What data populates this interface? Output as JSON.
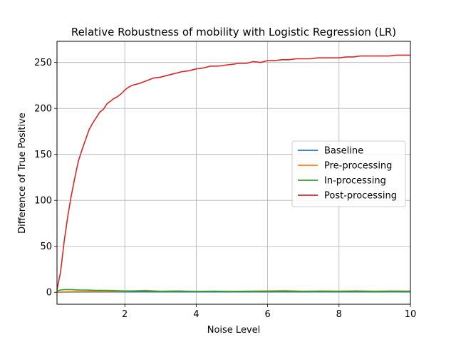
{
  "chart_data": {
    "type": "line",
    "title": "Relative Robustness of mobility with Logistic Regression (LR)",
    "xlabel": "Noise Level",
    "ylabel": "Difference of True Positive",
    "xlim": [
      0.1,
      10
    ],
    "ylim": [
      -13,
      273
    ],
    "xticks": [
      2,
      4,
      6,
      8,
      10
    ],
    "yticks": [
      0,
      50,
      100,
      150,
      200,
      250
    ],
    "grid": true,
    "legend_position": "center-right",
    "series": [
      {
        "name": "Baseline",
        "color": "#1f77b4",
        "x": [
          0.1,
          0.3,
          0.5,
          1,
          1.5,
          2,
          3,
          4,
          5,
          6,
          7,
          8,
          9,
          10
        ],
        "y": [
          0,
          0.2,
          0.4,
          0.5,
          0.5,
          0.5,
          0.5,
          0.5,
          0.5,
          0.5,
          0.5,
          0.5,
          0.5,
          0.5
        ]
      },
      {
        "name": "Pre-processing",
        "color": "#ff7f0e",
        "x": [
          0.1,
          0.3,
          0.5,
          1,
          1.5,
          2,
          2.6,
          3,
          3.5,
          4,
          4.5,
          5,
          5.5,
          6,
          6.5,
          7,
          7.5,
          8,
          8.5,
          9,
          9.5,
          10
        ],
        "y": [
          0,
          0.5,
          0.8,
          1,
          1,
          1.2,
          2,
          1,
          1.5,
          1,
          1.2,
          1,
          1.3,
          1.5,
          1.8,
          1.2,
          1.5,
          1.3,
          1.6,
          1.2,
          1.5,
          1.3
        ]
      },
      {
        "name": "In-processing",
        "color": "#2ca02c",
        "x": [
          0.1,
          0.2,
          0.3,
          0.5,
          0.7,
          0.9,
          1.2,
          1.5,
          2,
          2.5,
          3,
          3.5,
          4,
          4.5,
          5,
          5.5,
          6,
          6.5,
          7,
          7.5,
          8,
          8.5,
          9,
          9.5,
          10
        ],
        "y": [
          1.5,
          2.5,
          3,
          3,
          2.5,
          2.5,
          2,
          2,
          1.5,
          1.5,
          1.2,
          1.3,
          1.0,
          1.2,
          1.0,
          1.1,
          1.0,
          1.2,
          1.0,
          1.1,
          1.0,
          1.2,
          1.0,
          1.1,
          1.0
        ]
      },
      {
        "name": "Post-processing",
        "color": "#d62728",
        "x": [
          0.1,
          0.2,
          0.3,
          0.4,
          0.5,
          0.6,
          0.7,
          0.8,
          0.9,
          1.0,
          1.1,
          1.2,
          1.3,
          1.4,
          1.5,
          1.6,
          1.7,
          1.8,
          1.9,
          2.0,
          2.1,
          2.2,
          2.4,
          2.6,
          2.8,
          3.0,
          3.2,
          3.4,
          3.6,
          3.8,
          4.0,
          4.2,
          4.4,
          4.6,
          4.8,
          5.0,
          5.2,
          5.4,
          5.6,
          5.8,
          6.0,
          6.2,
          6.4,
          6.6,
          6.8,
          7.0,
          7.2,
          7.4,
          7.6,
          7.8,
          8.0,
          8.2,
          8.4,
          8.6,
          8.8,
          9.0,
          9.2,
          9.4,
          9.6,
          9.8,
          10.0
        ],
        "y": [
          3,
          22,
          55,
          82,
          105,
          125,
          143,
          155,
          166,
          177,
          184,
          190,
          196,
          199,
          205,
          208,
          211,
          213,
          216,
          220,
          223,
          225,
          227,
          230,
          233,
          234,
          236,
          238,
          240,
          241,
          243,
          244,
          246,
          246,
          247,
          248,
          249,
          249,
          251,
          250,
          252,
          252,
          253,
          253,
          254,
          254,
          254,
          255,
          255,
          255,
          255,
          256,
          256,
          257,
          257,
          257,
          257,
          257,
          258,
          258,
          258
        ]
      }
    ]
  }
}
